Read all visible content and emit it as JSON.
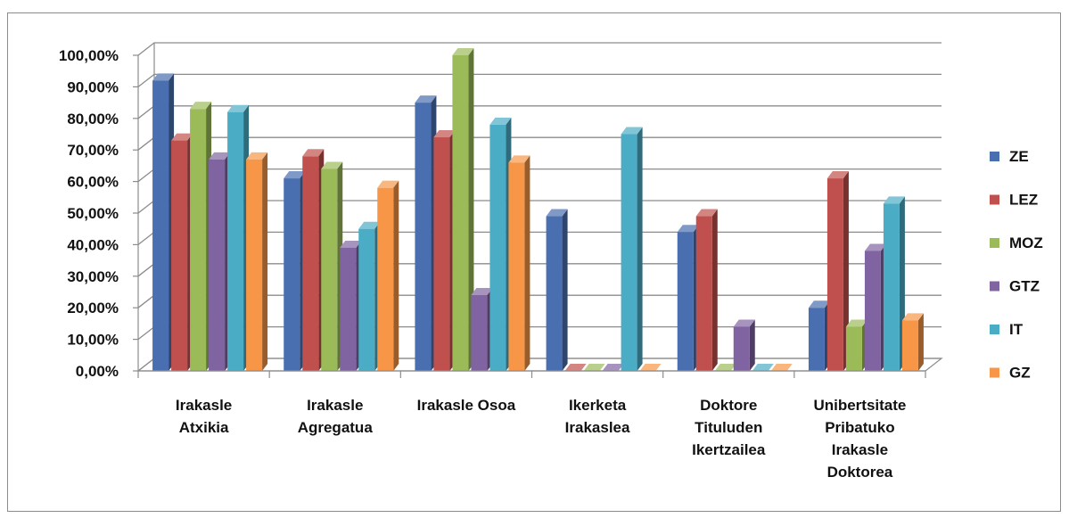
{
  "chart_data": {
    "type": "bar",
    "title": "",
    "xlabel": "",
    "ylabel": "",
    "ylim": [
      0,
      100
    ],
    "y_ticks": [
      "0,00%",
      "10,00%",
      "20,00%",
      "30,00%",
      "40,00%",
      "50,00%",
      "60,00%",
      "70,00%",
      "80,00%",
      "90,00%",
      "100,00%"
    ],
    "categories": [
      [
        "Irakasle",
        "Atxikia"
      ],
      [
        "Irakasle",
        "Agregatua"
      ],
      [
        "Irakasle Osoa"
      ],
      [
        "Ikerketa",
        "Irakaslea"
      ],
      [
        "Doktore",
        "Tituluden",
        "Ikertzailea"
      ],
      [
        "Unibertsitate",
        "Pribatuko",
        "Irakasle",
        "Doktorea"
      ]
    ],
    "series": [
      {
        "name": "ZE",
        "color": "#4a6fb0",
        "values": [
          92,
          61,
          85,
          49,
          44,
          20
        ]
      },
      {
        "name": "LEZ",
        "color": "#c0504d",
        "values": [
          73,
          68,
          74,
          0,
          49,
          61
        ]
      },
      {
        "name": "MOZ",
        "color": "#9bbb59",
        "values": [
          83,
          64,
          100,
          0,
          0,
          14
        ]
      },
      {
        "name": "GTZ",
        "color": "#8064a2",
        "values": [
          67,
          39,
          24,
          0,
          14,
          38
        ]
      },
      {
        "name": "IT",
        "color": "#4bacc6",
        "values": [
          82,
          45,
          78,
          75,
          0,
          53
        ]
      },
      {
        "name": "GZ",
        "color": "#f79646",
        "values": [
          67,
          58,
          66,
          0,
          0,
          16
        ]
      }
    ],
    "grid": true,
    "legend_position": "right",
    "projection": "3d-clustered"
  }
}
